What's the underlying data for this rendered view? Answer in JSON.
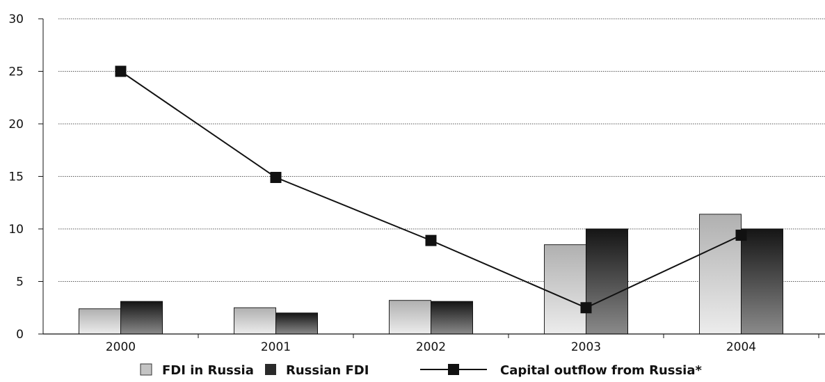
{
  "chart_data": {
    "type": "bar",
    "categories": [
      "2000",
      "2001",
      "2002",
      "2003",
      "2004"
    ],
    "series": [
      {
        "name": "FDI in Russia",
        "kind": "bar",
        "values": [
          2.4,
          2.5,
          3.2,
          8.5,
          11.4
        ]
      },
      {
        "name": "Russian FDI",
        "kind": "bar",
        "values": [
          3.1,
          2.0,
          3.1,
          10.0,
          10.0
        ]
      },
      {
        "name": "Capital outflow from Russia*",
        "kind": "line",
        "values": [
          25.0,
          14.9,
          8.9,
          2.5,
          9.4
        ]
      }
    ],
    "yticks": [
      "0",
      "5",
      "10",
      "15",
      "20",
      "25",
      "30"
    ],
    "ylim": [
      0,
      30
    ],
    "grid": true,
    "legend_position": "bottom",
    "title": "",
    "xlabel": "",
    "ylabel": ""
  },
  "colors": {
    "fdi_in_russia": "#c4c4c4",
    "russian_fdi": "#2a2a2a",
    "line": "#111111",
    "grid": "#555555"
  }
}
